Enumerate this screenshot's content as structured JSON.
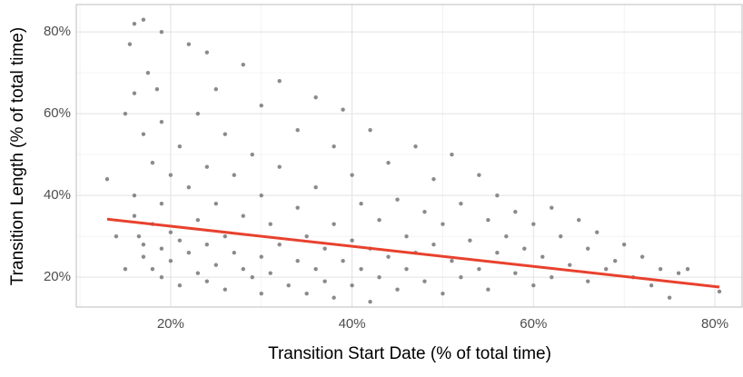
{
  "chart_data": {
    "type": "scatter",
    "xlabel": "Transition Start Date (% of total time)",
    "ylabel": "Transition Length (% of total time)",
    "xlim": [
      9.6,
      83
    ],
    "ylim": [
      12.7,
      86.7
    ],
    "xticks": [
      {
        "value": 20,
        "label": "20%"
      },
      {
        "value": 40,
        "label": "40%"
      },
      {
        "value": 60,
        "label": "60%"
      },
      {
        "value": 80,
        "label": "80%"
      }
    ],
    "yticks": [
      {
        "value": 20,
        "label": "20%"
      },
      {
        "value": 40,
        "label": "40%"
      },
      {
        "value": 60,
        "label": "60%"
      },
      {
        "value": 80,
        "label": "80%"
      }
    ],
    "x_minor_grid": [
      10,
      30,
      50,
      70
    ],
    "y_minor_grid": [
      30,
      50,
      70
    ],
    "grid": true,
    "series": [
      {
        "color": "#8a8a8a",
        "x": [
          13,
          14,
          15,
          15,
          15.5,
          16,
          16,
          16,
          16,
          16.5,
          17,
          17,
          17,
          17,
          17.5,
          18,
          18,
          18,
          18.5,
          19,
          19,
          19,
          19,
          19,
          20,
          20,
          20,
          21,
          21,
          21,
          22,
          22,
          22,
          23,
          23,
          23,
          24,
          24,
          24,
          24,
          25,
          25,
          25,
          26,
          26,
          26,
          27,
          27,
          28,
          28,
          28,
          29,
          29,
          30,
          30,
          30,
          30,
          31,
          31,
          32,
          32,
          32,
          33,
          34,
          34,
          34,
          35,
          35,
          36,
          36,
          36,
          37,
          37,
          38,
          38,
          38,
          39,
          39,
          40,
          40,
          40,
          41,
          41,
          42,
          42,
          42,
          43,
          43,
          44,
          44,
          45,
          45,
          46,
          46,
          47,
          47,
          48,
          48,
          49,
          49,
          50,
          50,
          51,
          51,
          52,
          52,
          53,
          54,
          54,
          55,
          55,
          56,
          56,
          57,
          58,
          58,
          59,
          60,
          60,
          61,
          62,
          62,
          63,
          64,
          65,
          66,
          66,
          67,
          68,
          69,
          70,
          71,
          72,
          73,
          74,
          75,
          76,
          77,
          80.5
        ],
        "y": [
          44,
          30,
          22,
          60,
          77,
          82,
          65,
          40,
          35,
          30,
          83,
          55,
          28,
          25,
          70,
          48,
          33,
          22,
          66,
          80,
          58,
          38,
          27,
          20,
          45,
          31,
          24,
          52,
          29,
          18,
          77,
          42,
          26,
          60,
          34,
          21,
          75,
          47,
          28,
          19,
          66,
          38,
          23,
          55,
          30,
          17,
          45,
          26,
          72,
          35,
          22,
          50,
          20,
          62,
          40,
          25,
          16,
          33,
          21,
          68,
          47,
          28,
          18,
          56,
          37,
          24,
          30,
          16,
          64,
          42,
          22,
          27,
          19,
          52,
          33,
          15,
          61,
          24,
          45,
          29,
          18,
          38,
          22,
          56,
          27,
          14,
          34,
          20,
          48,
          25,
          39,
          17,
          30,
          22,
          52,
          26,
          36,
          19,
          44,
          28,
          33,
          16,
          50,
          24,
          38,
          20,
          29,
          45,
          22,
          34,
          17,
          40,
          26,
          30,
          21,
          36,
          27,
          33,
          18,
          25,
          37,
          20,
          30,
          23,
          34,
          19,
          27,
          31,
          22,
          24,
          28,
          20,
          25,
          18,
          22,
          15,
          21,
          22,
          16.5
        ]
      }
    ],
    "trend": {
      "color": "#e8412d",
      "x": [
        13,
        80.5
      ],
      "y": [
        34.2,
        17.6
      ]
    }
  }
}
